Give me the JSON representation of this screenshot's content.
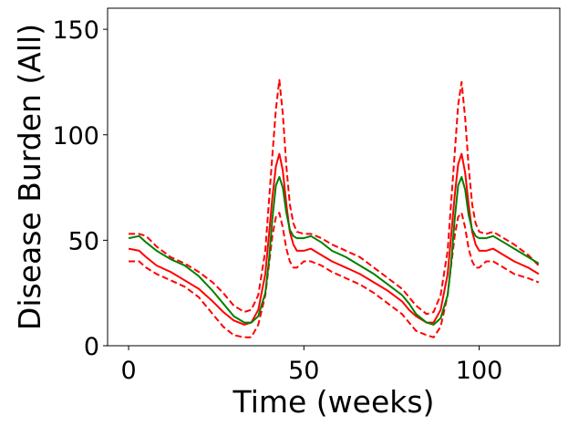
{
  "chart_data": {
    "type": "line",
    "title": "",
    "xlabel": "Time (weeks)",
    "ylabel": "Disease Burden (All)",
    "xlim": [
      -6,
      123
    ],
    "ylim": [
      0,
      160
    ],
    "xticks": [
      0,
      50,
      100
    ],
    "yticks": [
      0,
      50,
      100,
      150
    ],
    "grid": false,
    "legend": "none",
    "series": [
      {
        "color": "#ff0000",
        "dash": "dashed",
        "x": [
          0,
          3,
          5,
          8,
          12,
          16,
          20,
          24,
          27,
          30,
          33,
          35,
          37,
          39,
          40,
          41,
          42,
          43,
          44,
          45,
          46,
          47,
          48,
          50,
          52,
          55,
          58,
          62,
          66,
          70,
          74,
          78,
          80,
          82,
          85,
          87,
          89,
          91,
          92,
          93,
          94,
          95,
          96,
          97,
          98,
          99,
          100,
          102,
          104,
          107,
          110,
          114,
          117
        ],
        "y": [
          53,
          53,
          52,
          47,
          42,
          39,
          35,
          30,
          25,
          19,
          16,
          17,
          24,
          45,
          68,
          90,
          112,
          126,
          110,
          85,
          67,
          58,
          54,
          53,
          53,
          51,
          48,
          45,
          42,
          37,
          32,
          27,
          23,
          19,
          15,
          16,
          24,
          45,
          68,
          91,
          114,
          125,
          108,
          85,
          67,
          58,
          54,
          53,
          54,
          51,
          48,
          43,
          38
        ]
      },
      {
        "color": "#ff0000",
        "dash": "solid",
        "x": [
          0,
          3,
          5,
          8,
          12,
          16,
          20,
          24,
          27,
          30,
          33,
          35,
          37,
          39,
          40,
          41,
          42,
          43,
          44,
          45,
          46,
          47,
          48,
          50,
          52,
          55,
          58,
          62,
          66,
          70,
          74,
          78,
          80,
          82,
          85,
          87,
          89,
          91,
          92,
          93,
          94,
          95,
          96,
          97,
          98,
          99,
          100,
          102,
          104,
          107,
          110,
          114,
          117
        ],
        "y": [
          46,
          45,
          42,
          38,
          35,
          31,
          27,
          21,
          16,
          12,
          10,
          11,
          17,
          34,
          52,
          70,
          85,
          91,
          83,
          67,
          54,
          48,
          45,
          45,
          46,
          43,
          40,
          37,
          34,
          30,
          26,
          21,
          17,
          14,
          11,
          11,
          17,
          34,
          52,
          71,
          86,
          91,
          82,
          67,
          54,
          48,
          45,
          45,
          46,
          43,
          40,
          37,
          34
        ]
      },
      {
        "color": "#ff0000",
        "dash": "dashed",
        "x": [
          0,
          3,
          5,
          8,
          12,
          16,
          20,
          24,
          27,
          30,
          33,
          35,
          37,
          39,
          40,
          41,
          42,
          43,
          44,
          45,
          46,
          47,
          48,
          50,
          52,
          55,
          58,
          62,
          66,
          70,
          74,
          78,
          80,
          82,
          85,
          87,
          89,
          91,
          92,
          93,
          94,
          95,
          96,
          97,
          98,
          99,
          100,
          102,
          104,
          107,
          110,
          114,
          117
        ],
        "y": [
          40,
          40,
          37,
          34,
          31,
          28,
          23,
          15,
          9,
          5,
          4,
          4,
          10,
          24,
          38,
          52,
          61,
          63,
          56,
          46,
          40,
          37,
          37,
          40,
          40,
          38,
          35,
          32,
          29,
          25,
          20,
          15,
          11,
          7,
          5,
          4,
          9,
          24,
          38,
          52,
          61,
          63,
          56,
          46,
          40,
          37,
          37,
          40,
          40,
          37,
          34,
          32,
          30
        ]
      },
      {
        "color": "#008000",
        "dash": "solid",
        "x": [
          0,
          3,
          5,
          8,
          12,
          16,
          20,
          24,
          27,
          30,
          33,
          35,
          37,
          39,
          40,
          41,
          42,
          43,
          44,
          45,
          46,
          47,
          48,
          50,
          52,
          55,
          58,
          62,
          66,
          70,
          74,
          78,
          80,
          82,
          85,
          87,
          89,
          91,
          92,
          93,
          94,
          95,
          96,
          97,
          98,
          99,
          100,
          102,
          104,
          107,
          110,
          114,
          117
        ],
        "y": [
          51,
          52,
          49,
          45,
          41,
          38,
          33,
          26,
          20,
          14,
          11,
          11,
          14,
          25,
          40,
          60,
          76,
          80,
          75,
          63,
          55,
          52,
          51,
          51,
          52,
          49,
          45,
          42,
          38,
          34,
          29,
          24,
          20,
          15,
          11,
          10,
          13,
          24,
          39,
          60,
          76,
          80,
          74,
          62,
          55,
          52,
          51,
          51,
          52,
          49,
          46,
          42,
          39
        ]
      }
    ]
  }
}
